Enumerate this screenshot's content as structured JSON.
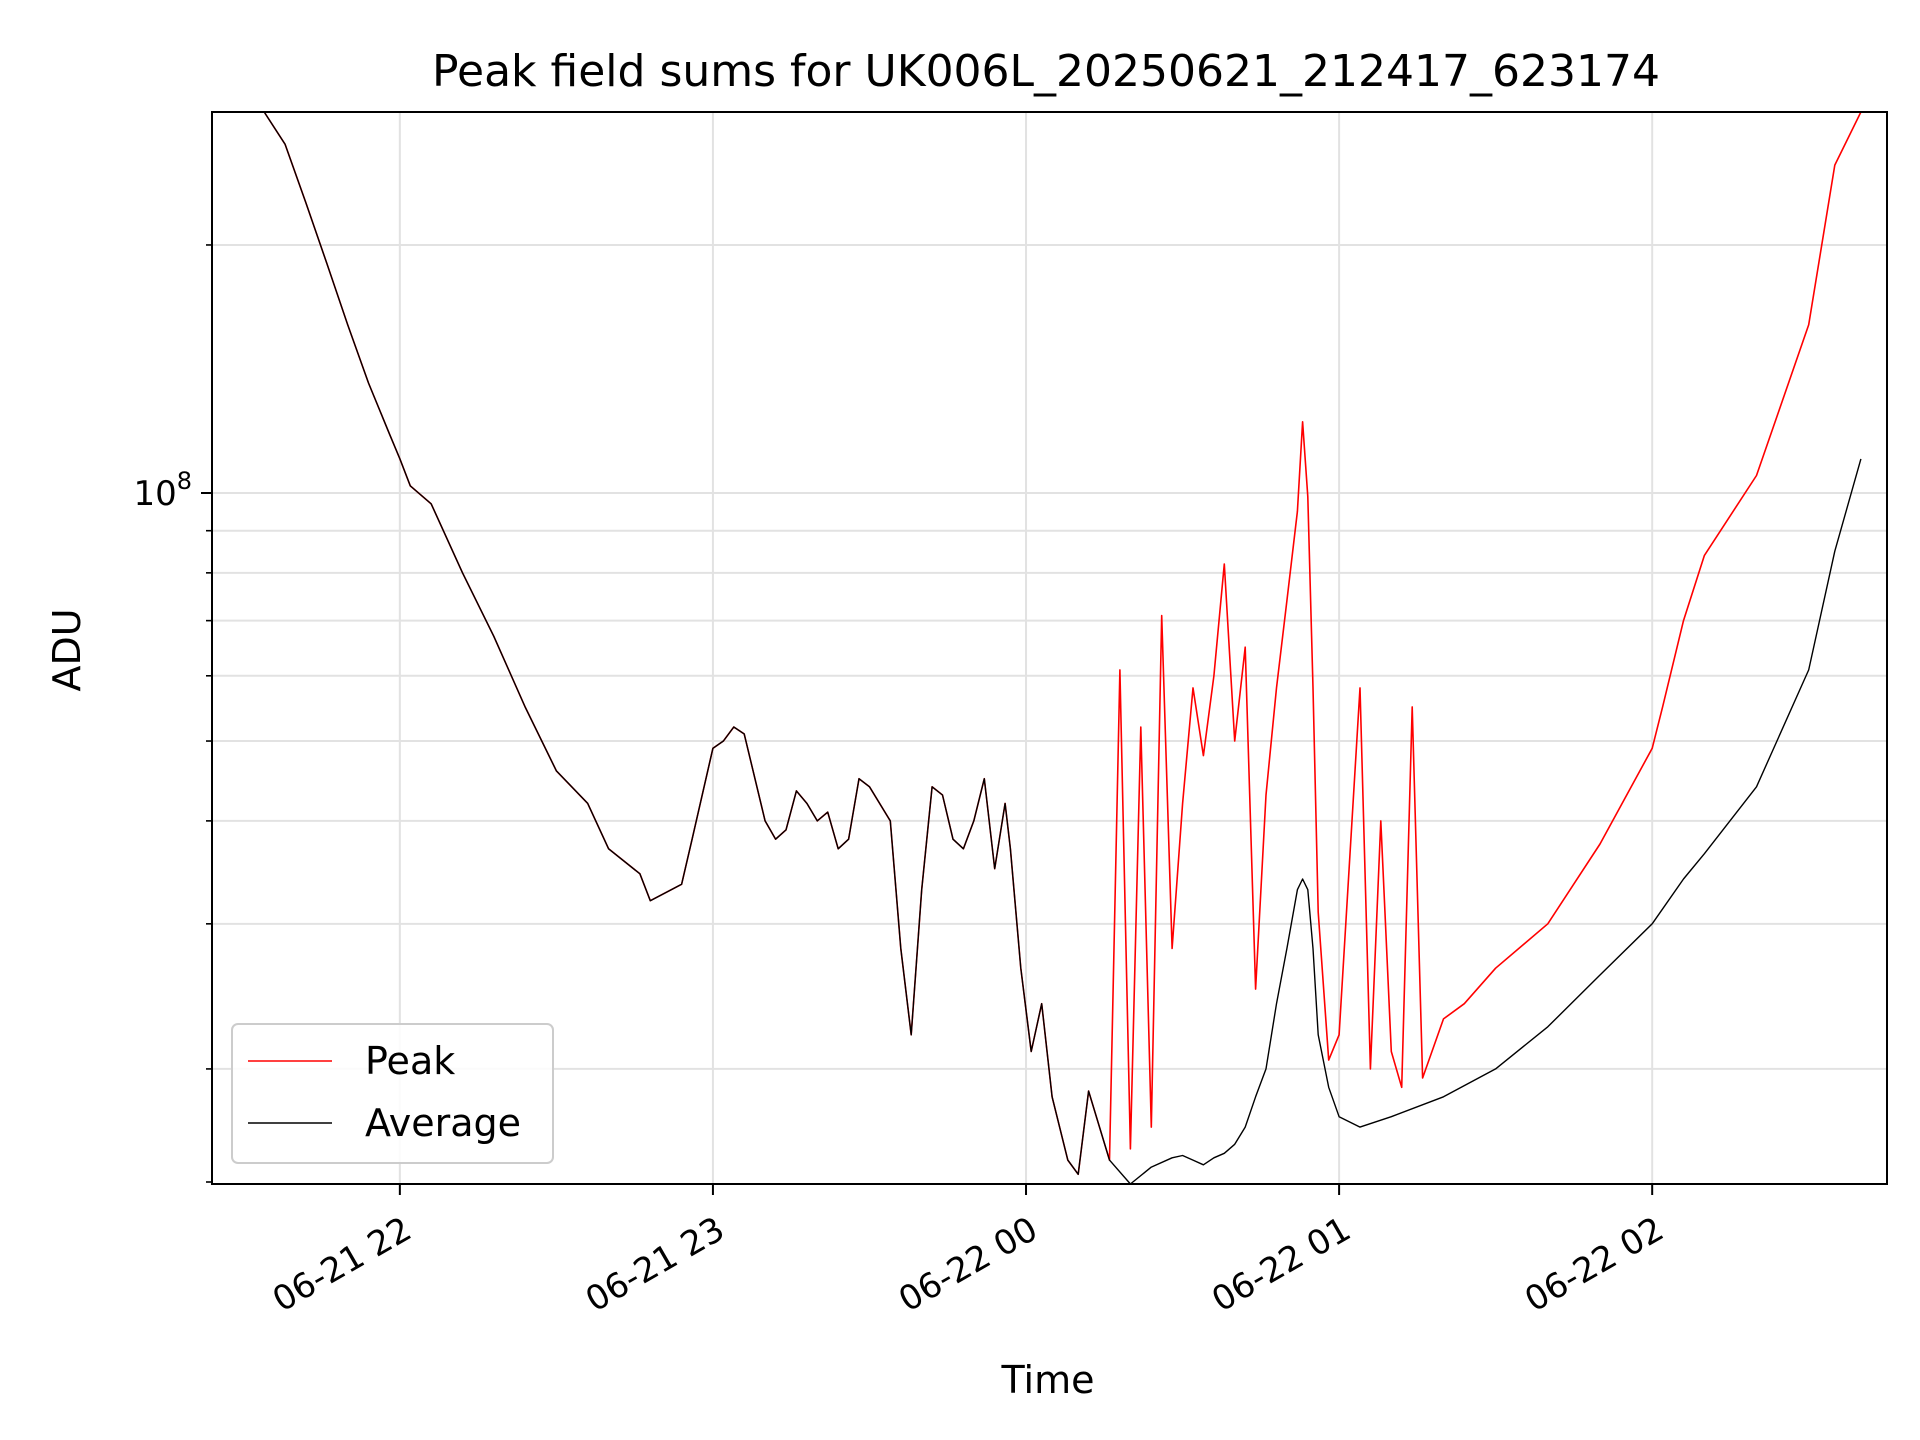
{
  "chart_data": {
    "type": "line",
    "title": "Peak field sums for UK006L_20250621_212417_623174",
    "xlabel": "Time",
    "ylabel": "ADU",
    "y_scale": "log",
    "grid": true,
    "legend_position": "lower-left",
    "xlim": [
      "2025-06-21 21:24",
      "2025-06-22 02:45"
    ],
    "ylim": [
      14500000,
      290000000
    ],
    "x_ticks": [
      "2025-06-21 22:00",
      "2025-06-21 23:00",
      "2025-06-22 00:00",
      "2025-06-22 01:00",
      "2025-06-22 02:00"
    ],
    "x_tick_labels": [
      "06-21 22",
      "06-21 23",
      "06-22 00",
      "06-22 01",
      "06-22 02"
    ],
    "y_major_tick": {
      "value": 100000000,
      "base": "10",
      "exponent": "8"
    },
    "series": [
      {
        "name": "Peak",
        "color": "#ff0000",
        "x": [
          "21:24",
          "21:34",
          "21:38",
          "21:42",
          "21:46",
          "21:50",
          "21:54",
          "21:58",
          "22:00",
          "22:02",
          "22:06",
          "22:12",
          "22:18",
          "22:24",
          "22:30",
          "22:36",
          "22:40",
          "22:46",
          "22:48",
          "22:54",
          "22:56",
          "23:00",
          "23:02",
          "23:04",
          "23:06",
          "23:10",
          "23:12",
          "23:14",
          "23:16",
          "23:18",
          "23:20",
          "23:22",
          "23:24",
          "23:26",
          "23:28",
          "23:30",
          "23:34",
          "23:36",
          "23:38",
          "23:40",
          "23:42",
          "23:44",
          "23:46",
          "23:48",
          "23:50",
          "23:52",
          "23:54",
          "23:56",
          "23:57",
          "23:59",
          "00:01",
          "00:03",
          "00:05",
          "00:08",
          "00:10",
          "00:12",
          "00:16",
          "00:18",
          "00:20",
          "00:22",
          "00:24",
          "00:26",
          "00:28",
          "00:30",
          "00:32",
          "00:34",
          "00:36",
          "00:38",
          "00:40",
          "00:42",
          "00:44",
          "00:46",
          "00:48",
          "00:50",
          "00:52",
          "00:53",
          "00:54",
          "00:55",
          "00:56",
          "00:58",
          "01:00",
          "01:04",
          "01:06",
          "01:08",
          "01:10",
          "01:12",
          "01:14",
          "01:16",
          "01:20",
          "01:24",
          "01:30",
          "01:40",
          "01:50",
          "02:00",
          "02:02",
          "02:06",
          "02:10",
          "02:20",
          "02:30",
          "02:35",
          "02:40"
        ],
        "y": [
          290000000,
          290000000,
          265000000,
          225000000,
          190000000,
          160000000,
          136000000,
          118000000,
          110000000,
          102000000,
          97000000,
          80000000,
          67000000,
          55000000,
          46000000,
          42000000,
          37000000,
          34500000,
          32000000,
          33500000,
          38000000,
          49000000,
          50000000,
          52000000,
          51000000,
          40000000,
          38000000,
          39000000,
          43500000,
          42000000,
          40000000,
          41000000,
          37000000,
          38000000,
          45000000,
          44000000,
          40000000,
          28000000,
          22000000,
          33000000,
          44000000,
          43000000,
          38000000,
          37000000,
          40000000,
          45000000,
          35000000,
          42000000,
          37000000,
          26500000,
          21000000,
          24000000,
          18500000,
          15500000,
          14900000,
          18800000,
          15500000,
          61000000,
          16000000,
          52000000,
          17000000,
          71000000,
          28000000,
          42000000,
          58000000,
          48000000,
          60000000,
          82000000,
          50000000,
          65000000,
          25000000,
          43000000,
          58000000,
          74000000,
          95000000,
          122000000,
          99000000,
          58000000,
          31000000,
          20500000,
          22000000,
          58000000,
          20000000,
          40000000,
          21000000,
          19000000,
          55000000,
          19500000,
          23000000,
          24000000,
          26500000,
          30000000,
          37500000,
          49000000,
          55000000,
          70000000,
          84000000,
          105000000,
          160000000,
          250000000,
          290000000
        ]
      },
      {
        "name": "Average",
        "color": "#000000",
        "x": [
          "21:24",
          "21:34",
          "21:38",
          "21:42",
          "21:46",
          "21:50",
          "21:54",
          "21:58",
          "22:00",
          "22:02",
          "22:06",
          "22:12",
          "22:18",
          "22:24",
          "22:30",
          "22:36",
          "22:40",
          "22:46",
          "22:48",
          "22:54",
          "22:56",
          "23:00",
          "23:02",
          "23:04",
          "23:06",
          "23:10",
          "23:12",
          "23:14",
          "23:16",
          "23:18",
          "23:20",
          "23:22",
          "23:24",
          "23:26",
          "23:28",
          "23:30",
          "23:34",
          "23:36",
          "23:38",
          "23:40",
          "23:42",
          "23:44",
          "23:46",
          "23:48",
          "23:50",
          "23:52",
          "23:54",
          "23:56",
          "23:57",
          "23:59",
          "00:01",
          "00:03",
          "00:05",
          "00:08",
          "00:10",
          "00:12",
          "00:16",
          "00:20",
          "00:24",
          "00:28",
          "00:30",
          "00:32",
          "00:34",
          "00:36",
          "00:38",
          "00:40",
          "00:42",
          "00:44",
          "00:46",
          "00:48",
          "00:50",
          "00:52",
          "00:53",
          "00:54",
          "00:55",
          "00:56",
          "00:58",
          "01:00",
          "01:04",
          "01:10",
          "01:20",
          "01:30",
          "01:40",
          "01:50",
          "02:00",
          "02:06",
          "02:10",
          "02:20",
          "02:30",
          "02:35",
          "02:40"
        ],
        "y": [
          290000000,
          290000000,
          265000000,
          225000000,
          190000000,
          160000000,
          136000000,
          118000000,
          110000000,
          102000000,
          97000000,
          80000000,
          67000000,
          55000000,
          46000000,
          42000000,
          37000000,
          34500000,
          32000000,
          33500000,
          38000000,
          49000000,
          50000000,
          52000000,
          51000000,
          40000000,
          38000000,
          39000000,
          43500000,
          42000000,
          40000000,
          41000000,
          37000000,
          38000000,
          45000000,
          44000000,
          40000000,
          28000000,
          22000000,
          33000000,
          44000000,
          43000000,
          38000000,
          37000000,
          40000000,
          45000000,
          35000000,
          42000000,
          37000000,
          26500000,
          21000000,
          24000000,
          18500000,
          15500000,
          14900000,
          18800000,
          15500000,
          14500000,
          15200000,
          15600000,
          15700000,
          15500000,
          15300000,
          15600000,
          15800000,
          16200000,
          17000000,
          18500000,
          20000000,
          24000000,
          28000000,
          33000000,
          34000000,
          33000000,
          28000000,
          22000000,
          19000000,
          17500000,
          17000000,
          17500000,
          18500000,
          20000000,
          22500000,
          26000000,
          30000000,
          34000000,
          36500000,
          44000000,
          61000000,
          85000000,
          110000000
        ]
      }
    ]
  }
}
